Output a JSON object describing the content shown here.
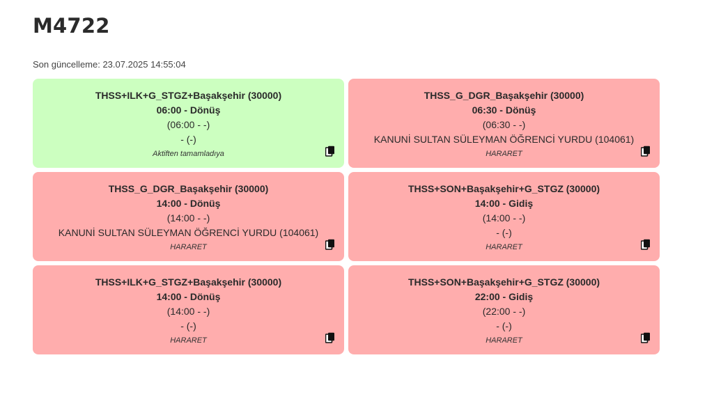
{
  "header": {
    "title": "M4722",
    "last_update": "Son güncelleme: 23.07.2025 14:55:04"
  },
  "colors": {
    "green_card": "#ccffc0",
    "red_card": "#ffadad"
  },
  "cards": [
    {
      "status_color": "green",
      "route": "THSS+ILK+G_STGZ+Başakşehir (30000)",
      "trip": "06:00 - Dönüş",
      "times": "(06:00 - -)",
      "location": "- (-)",
      "status": "Aktiften tamamladıya",
      "icon": "copy-icon"
    },
    {
      "status_color": "red",
      "route": "THSS_G_DGR_Başakşehir (30000)",
      "trip": "06:30 - Dönüş",
      "times": "(06:30 - -)",
      "location": "KANUNİ SULTAN SÜLEYMAN ÖĞRENCİ YURDU (104061)",
      "status": "HARARET",
      "icon": "copy-icon"
    },
    {
      "status_color": "red",
      "route": "THSS_G_DGR_Başakşehir (30000)",
      "trip": "14:00 - Dönüş",
      "times": "(14:00 - -)",
      "location": "KANUNİ SULTAN SÜLEYMAN ÖĞRENCİ YURDU (104061)",
      "status": "HARARET",
      "icon": "copy-icon"
    },
    {
      "status_color": "red",
      "route": "THSS+SON+Başakşehir+G_STGZ (30000)",
      "trip": "14:00 - Gidiş",
      "times": "(14:00 - -)",
      "location": "- (-)",
      "status": "HARARET",
      "icon": "copy-icon"
    },
    {
      "status_color": "red",
      "route": "THSS+ILK+G_STGZ+Başakşehir (30000)",
      "trip": "14:00 - Dönüş",
      "times": "(14:00 - -)",
      "location": "- (-)",
      "status": "HARARET",
      "icon": "copy-icon"
    },
    {
      "status_color": "red",
      "route": "THSS+SON+Başakşehir+G_STGZ (30000)",
      "trip": "22:00 - Gidiş",
      "times": "(22:00 - -)",
      "location": "- (-)",
      "status": "HARARET",
      "icon": "copy-icon"
    }
  ]
}
